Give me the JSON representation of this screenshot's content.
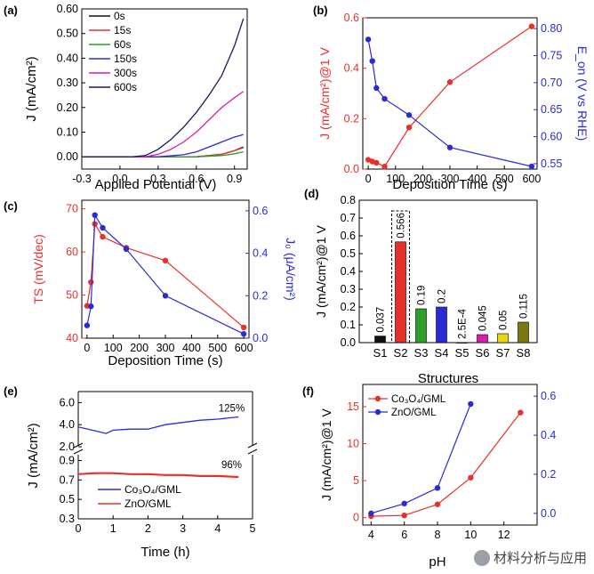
{
  "chart_data": [
    {
      "panel": "(a)",
      "type": "line",
      "xlabel": "Applied Potential (V)",
      "ylabel": "J (mA/cm²)",
      "xlim": [
        -0.3,
        1.0
      ],
      "ylim": [
        -0.05,
        0.6
      ],
      "xticks": [
        "-0.3",
        "0.0",
        "0.3",
        "0.6",
        "0.9"
      ],
      "yticks": [
        "0.00",
        "0.10",
        "0.20",
        "0.30",
        "0.40",
        "0.50",
        "0.60"
      ],
      "legend": "top-left",
      "series": [
        {
          "name": "0s",
          "color": "#111111",
          "points": [
            [
              -0.3,
              0
            ],
            [
              0.6,
              0
            ],
            [
              0.8,
              0.01
            ],
            [
              0.9,
              0.025
            ],
            [
              0.97,
              0.04
            ]
          ]
        },
        {
          "name": "15s",
          "color": "#e8302a",
          "points": [
            [
              -0.3,
              0
            ],
            [
              0.6,
              0
            ],
            [
              0.8,
              0.01
            ],
            [
              0.9,
              0.025
            ],
            [
              0.97,
              0.037
            ]
          ]
        },
        {
          "name": "60s",
          "color": "#2ca02c",
          "points": [
            [
              -0.3,
              0
            ],
            [
              0.6,
              0
            ],
            [
              0.8,
              0.005
            ],
            [
              0.9,
              0.012
            ],
            [
              0.97,
              0.02
            ]
          ]
        },
        {
          "name": "150s",
          "color": "#2b2bd6",
          "points": [
            [
              -0.3,
              0
            ],
            [
              0.3,
              0
            ],
            [
              0.5,
              0.008
            ],
            [
              0.6,
              0.02
            ],
            [
              0.7,
              0.04
            ],
            [
              0.8,
              0.06
            ],
            [
              0.9,
              0.08
            ],
            [
              0.97,
              0.09
            ]
          ]
        },
        {
          "name": "300s",
          "color": "#d61fb0",
          "points": [
            [
              -0.3,
              0
            ],
            [
              0.2,
              0
            ],
            [
              0.3,
              0.01
            ],
            [
              0.4,
              0.03
            ],
            [
              0.5,
              0.06
            ],
            [
              0.6,
              0.1
            ],
            [
              0.7,
              0.15
            ],
            [
              0.8,
              0.2
            ],
            [
              0.9,
              0.24
            ],
            [
              0.97,
              0.265
            ]
          ]
        },
        {
          "name": "600s",
          "color": "#1a1a5e",
          "points": [
            [
              -0.3,
              0
            ],
            [
              0.1,
              0
            ],
            [
              0.2,
              0.005
            ],
            [
              0.3,
              0.03
            ],
            [
              0.4,
              0.07
            ],
            [
              0.5,
              0.12
            ],
            [
              0.6,
              0.18
            ],
            [
              0.7,
              0.25
            ],
            [
              0.8,
              0.33
            ],
            [
              0.9,
              0.45
            ],
            [
              0.97,
              0.56
            ]
          ]
        }
      ]
    },
    {
      "panel": "(b)",
      "type": "line",
      "xlabel": "Deposition Time (s)",
      "ylabel_left": "J (mA/cm²)@1 V",
      "ylabel_right": "E_on (V vs RHE)",
      "xlim": [
        -20,
        620
      ],
      "ylim_left": [
        0,
        0.6
      ],
      "ylim_right": [
        0.54,
        0.82
      ],
      "xticks": [
        "0",
        "100",
        "200",
        "300",
        "400",
        "500",
        "600"
      ],
      "yticks_left": [
        "0.0",
        "0.2",
        "0.4",
        "0.6"
      ],
      "yticks_right": [
        "0.55",
        "0.60",
        "0.65",
        "0.70",
        "0.75",
        "0.80"
      ],
      "series": [
        {
          "name": "J@1V",
          "axis": "left",
          "color": "#e8302a",
          "x": [
            0,
            15,
            30,
            60,
            150,
            300,
            600
          ],
          "y": [
            0.037,
            0.03,
            0.025,
            0.01,
            0.165,
            0.345,
            0.566
          ]
        },
        {
          "name": "E_on",
          "axis": "right",
          "color": "#2b2bd6",
          "x": [
            0,
            15,
            30,
            60,
            150,
            300,
            600
          ],
          "y": [
            0.78,
            0.74,
            0.69,
            0.67,
            0.64,
            0.58,
            0.545
          ]
        }
      ]
    },
    {
      "panel": "(c)",
      "type": "line",
      "xlabel": "Deposition Time (s)",
      "ylabel_left": "TS (mV/dec)",
      "ylabel_right": "J₀ (μA/cm²)",
      "xlim": [
        -20,
        620
      ],
      "ylim_left": [
        40,
        72
      ],
      "ylim_right": [
        0,
        0.65
      ],
      "xticks": [
        "0",
        "100",
        "200",
        "300",
        "400",
        "500",
        "600"
      ],
      "yticks_left": [
        "40",
        "50",
        "60",
        "70"
      ],
      "yticks_right": [
        "0.0",
        "0.2",
        "0.4",
        "0.6"
      ],
      "series": [
        {
          "name": "TS",
          "axis": "left",
          "color": "#e8302a",
          "x": [
            0,
            15,
            30,
            60,
            150,
            300,
            600
          ],
          "y": [
            47.5,
            53,
            66.5,
            63.5,
            61,
            58,
            42.5
          ]
        },
        {
          "name": "J0",
          "axis": "right",
          "color": "#2b2bd6",
          "x": [
            0,
            15,
            30,
            60,
            150,
            300,
            600
          ],
          "y": [
            0.06,
            0.15,
            0.58,
            0.52,
            0.42,
            0.2,
            0.02
          ]
        }
      ]
    },
    {
      "panel": "(d)",
      "type": "bar",
      "xlabel": "Structures",
      "ylabel": "J (mA/cm²)@1 V",
      "ylim": [
        0,
        0.8
      ],
      "yticks": [
        "0.0",
        "0.1",
        "0.2",
        "0.3",
        "0.4",
        "0.5",
        "0.6",
        "0.7",
        "0.8"
      ],
      "categories": [
        "S1",
        "S2",
        "S3",
        "S4",
        "S5",
        "S6",
        "S7",
        "S8"
      ],
      "values": [
        0.037,
        0.566,
        0.19,
        0.2,
        0.00025,
        0.045,
        0.05,
        0.115
      ],
      "value_labels": [
        "0.037",
        "0.566",
        "0.19",
        "0.2",
        "2.5E-4",
        "0.045",
        "0.05",
        "0.115"
      ],
      "colors": [
        "#111111",
        "#e8302a",
        "#2ca02c",
        "#2b2bd6",
        "#2b2bd6",
        "#d61fb0",
        "#e8d70f",
        "#7a7a12"
      ]
    },
    {
      "panel": "(e)",
      "type": "line",
      "xlabel": "Time (h)",
      "ylabel": "J (mA/cm²)",
      "xlim": [
        0,
        5
      ],
      "xticks": [
        "0",
        "1",
        "2",
        "3",
        "4",
        "5"
      ],
      "yticks_upper": [
        "2.0",
        "4.0",
        "6.0"
      ],
      "yticks_lower": [
        "0.3",
        "0.5",
        "0.7",
        "0.9"
      ],
      "legend": "bottom-left",
      "annotations": [
        "125%",
        "96%"
      ],
      "series": [
        {
          "name": "Co₃O₄/GML",
          "color": "#2b2bd6",
          "x": [
            0,
            0.4,
            0.8,
            1.0,
            1.5,
            2.0,
            2.5,
            3.0,
            3.5,
            4.0,
            4.6
          ],
          "y": [
            3.8,
            3.5,
            3.2,
            3.5,
            3.6,
            3.6,
            4.0,
            4.2,
            4.4,
            4.5,
            4.7
          ]
        },
        {
          "name": "ZnO/GML",
          "color": "#e8302a",
          "x": [
            0,
            0.5,
            1.0,
            1.5,
            2.0,
            2.5,
            3.0,
            3.5,
            4.0,
            4.6
          ],
          "y": [
            0.76,
            0.77,
            0.77,
            0.76,
            0.76,
            0.75,
            0.75,
            0.74,
            0.74,
            0.73
          ]
        }
      ]
    },
    {
      "panel": "(f)",
      "type": "line",
      "xlabel": "pH",
      "ylabel": "J (mA/cm²)@1 V",
      "xlim": [
        3.5,
        14
      ],
      "ylim_left": [
        -1,
        18
      ],
      "ylim_right": [
        -0.06,
        0.66
      ],
      "xticks": [
        "4",
        "6",
        "8",
        "10",
        "12"
      ],
      "yticks_left": [
        "0",
        "5",
        "10",
        "15"
      ],
      "yticks_right": [
        "0.0",
        "0.2",
        "0.4",
        "0.6"
      ],
      "legend": "top-left",
      "series": [
        {
          "name": "Co₃O₄/GML",
          "axis": "left",
          "color": "#e8302a",
          "x": [
            4,
            6,
            8,
            10,
            13
          ],
          "y": [
            0.2,
            0.3,
            1.8,
            5.4,
            14.2
          ]
        },
        {
          "name": "ZnO/GML",
          "axis": "right",
          "color": "#2b2bd6",
          "x": [
            4,
            6,
            8,
            10
          ],
          "y": [
            0.0,
            0.05,
            0.13,
            0.56
          ]
        }
      ]
    }
  ],
  "watermark": "材料分析与应用"
}
